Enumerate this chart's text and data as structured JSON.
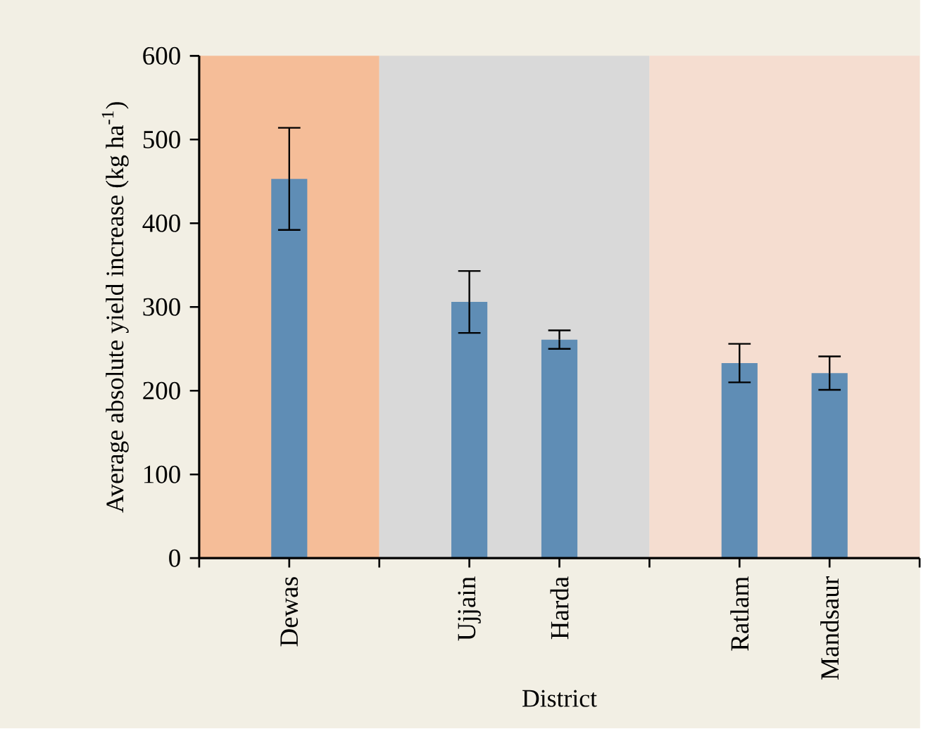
{
  "chart_data": {
    "type": "bar",
    "xlabel": "District",
    "ylabel": "Average absolute yield increase (kg ha$^{-1}$)",
    "categories": [
      "Dewas",
      null,
      "Ujjain",
      "Harda",
      null,
      "Ratlam",
      "Mandsaur"
    ],
    "values": [
      453,
      null,
      306,
      261,
      null,
      233,
      221
    ],
    "errors": [
      61,
      null,
      37,
      11,
      null,
      23,
      20
    ],
    "color": "#5f8db5",
    "ylim": [
      0,
      600
    ],
    "yticks": [
      0,
      100,
      200,
      300,
      400,
      500,
      600
    ],
    "grid": false
  }
}
